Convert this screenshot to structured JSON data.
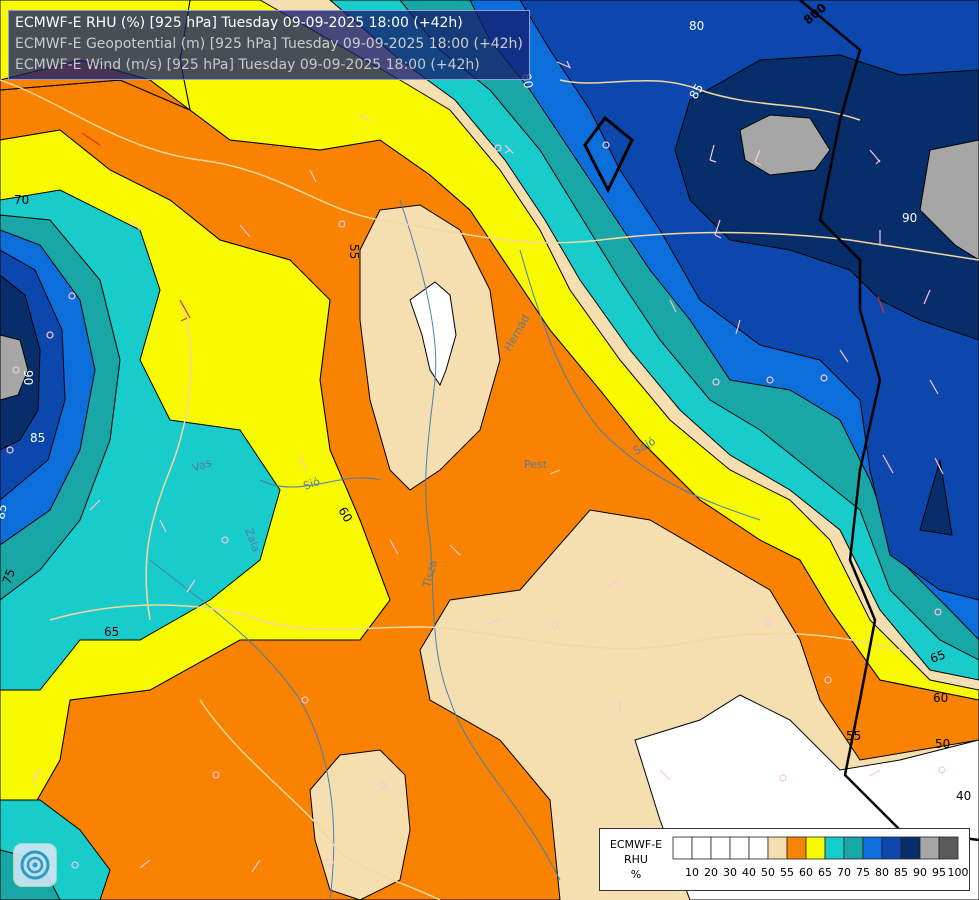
{
  "layers": [
    {
      "title": "ECMWF-E RHU (%) [925 hPa] Tuesday 09-09-2025 18:00 (+42h)",
      "color": "#ffffff"
    },
    {
      "title": "ECMWF-E Geopotential (m) [925 hPa] Tuesday 09-09-2025 18:00 (+42h)",
      "color": "#cccccc"
    },
    {
      "title": "ECMWF-E Wind (m/s) [925 hPa] Tuesday 09-09-2025 18:00 (+42h)",
      "color": "#c8c8c8"
    }
  ],
  "legend": {
    "model": "ECMWF-E",
    "variable": "RHU",
    "unit": "%",
    "classes": [
      {
        "label": "10",
        "color": "#ffffff"
      },
      {
        "label": "20",
        "color": "#ffffff"
      },
      {
        "label": "30",
        "color": "#ffffff"
      },
      {
        "label": "40",
        "color": "#ffffff"
      },
      {
        "label": "50",
        "color": "#ffffff"
      },
      {
        "label": "55",
        "color": "#f5deb0"
      },
      {
        "label": "60",
        "color": "#f98200"
      },
      {
        "label": "65",
        "color": "#f8fa00"
      },
      {
        "label": "70",
        "color": "#18cccc"
      },
      {
        "label": "75",
        "color": "#19a6a6"
      },
      {
        "label": "80",
        "color": "#0c6edb"
      },
      {
        "label": "85",
        "color": "#0b47ad"
      },
      {
        "label": "90",
        "color": "#082d6b"
      },
      {
        "label": "95",
        "color": "#a6a6a6"
      },
      {
        "label": "100",
        "color": "#5a5a5a"
      }
    ]
  },
  "map_labels": {
    "contours": [
      "800",
      "80",
      "85",
      "90",
      "70",
      "55",
      "60",
      "85",
      "90",
      "85",
      "75",
      "65",
      "65",
      "60",
      "55",
      "50",
      "40",
      "80"
    ],
    "rivers": [
      "Hernád",
      "Sajó",
      "Tisza",
      "Zala",
      "Sió",
      "Vas",
      "Pest"
    ]
  },
  "logo": {
    "icon": "ecmwf-swirl-icon"
  }
}
